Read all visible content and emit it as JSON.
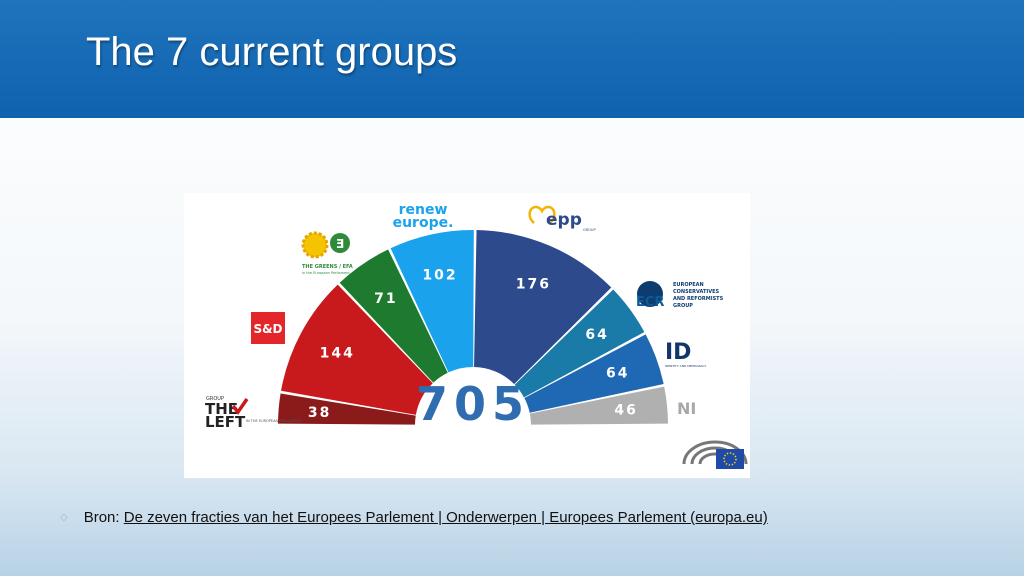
{
  "slide": {
    "title": "The 7 current groups"
  },
  "colors": {
    "header": "#1565b0",
    "left": "#8b1a1a",
    "sd": "#c8191d",
    "greens": "#1d7a2e",
    "renew": "#1aa3ec",
    "epp": "#2c4a8c",
    "ecr": "#1a7aa8",
    "id": "#1e68b4",
    "ni": "#b0b0b0",
    "total": "#2f6db0"
  },
  "chart_data": {
    "type": "pie",
    "subtype": "parliament-hemicycle",
    "total": "705",
    "series": [
      {
        "key": "left",
        "value": 38,
        "color": "#8b1a1a"
      },
      {
        "key": "sd",
        "value": 144,
        "color": "#c8191d"
      },
      {
        "key": "greens",
        "value": 71,
        "color": "#1d7a2e"
      },
      {
        "key": "renew",
        "value": 102,
        "color": "#1aa3ec"
      },
      {
        "key": "epp",
        "value": 176,
        "color": "#2c4a8c"
      },
      {
        "key": "ecr",
        "value": 64,
        "color": "#1a7aa8"
      },
      {
        "key": "id",
        "value": 64,
        "color": "#1e68b4"
      },
      {
        "key": "ni",
        "value": 46,
        "color": "#b0b0b0"
      }
    ]
  },
  "logos": {
    "left": {
      "small": "GROUP",
      "line1": "THE",
      "line2": "LEFT",
      "sub": "IN THE EUROPEAN PARLIAMENT"
    },
    "sd": {
      "text": "S&D"
    },
    "greens": {
      "text": "THE GREENS / EFA",
      "sub": "in the European Parliament"
    },
    "renew": {
      "line1": "renew",
      "line2": "europe."
    },
    "epp": {
      "text": "epp",
      "sub": "GROUP"
    },
    "ecr": {
      "text": "ECR",
      "line1": "EUROPEAN",
      "line2": "CONSERVATIVES",
      "line3": "AND REFORMISTS",
      "line4": "GROUP"
    },
    "id": {
      "text": "ID",
      "sub": "IDENTITY AND DEMOCRACY"
    },
    "ni": {
      "text": "NI"
    }
  },
  "footer": {
    "prefix": "Bron:",
    "link_text": "De zeven fracties van het Europees Parlement | Onderwerpen | Europees Parlement (europa.eu)"
  }
}
